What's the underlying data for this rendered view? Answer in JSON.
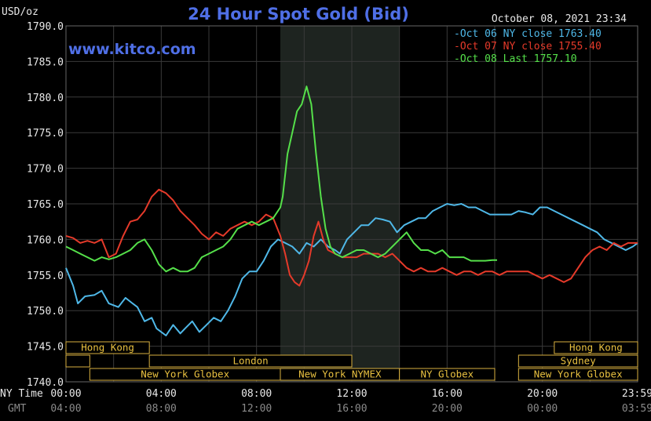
{
  "chart_data": {
    "type": "line",
    "title": "24 Hour Spot Gold (Bid)",
    "ylabel": "USD/oz",
    "website": "www.kitco.com",
    "timestamp": "October 08, 2021 23:34",
    "ylim": [
      1740,
      1790
    ],
    "y_ticks": [
      "1790.0",
      "1785.0",
      "1780.0",
      "1775.0",
      "1770.0",
      "1765.0",
      "1760.0",
      "1755.0",
      "1750.0",
      "1745.0",
      "1740.0"
    ],
    "y_values": [
      1790,
      1785,
      1780,
      1775,
      1770,
      1765,
      1760,
      1755,
      1750,
      1745,
      1740
    ],
    "x_row_labels": {
      "ny": "NY Time",
      "gmt": "GMT"
    },
    "x_ticks_ny": [
      "00:00",
      "04:00",
      "08:00",
      "12:00",
      "16:00",
      "20:00",
      "23:59"
    ],
    "x_ticks_gmt": [
      "04:00",
      "08:00",
      "12:00",
      "16:00",
      "20:00",
      "00:00",
      "03:59"
    ],
    "x_tick_hours": [
      0,
      4,
      8,
      12,
      16,
      20,
      23.983
    ],
    "xlim_hours": [
      0,
      24
    ],
    "highlight_hours": [
      9.0,
      14.0
    ],
    "legend_position": "top-right",
    "grid": true,
    "sessions": [
      {
        "label": "Hong Kong",
        "row": 0,
        "start": 0,
        "end": 3.5
      },
      {
        "label": "",
        "row": 1,
        "start": 0,
        "end": 1.0
      },
      {
        "label": "London",
        "row": 1,
        "start": 3.5,
        "end": 12.0
      },
      {
        "label": "New York Globex",
        "row": 2,
        "start": 1.0,
        "end": 9.0
      },
      {
        "label": "New York NYMEX",
        "row": 2,
        "start": 9.0,
        "end": 14.0
      },
      {
        "label": "NY Globex",
        "row": 2,
        "start": 14.0,
        "end": 18.0
      },
      {
        "label": "Hong Kong",
        "row": 0,
        "start": 20.5,
        "end": 24
      },
      {
        "label": "Sydney",
        "row": 1,
        "start": 19.0,
        "end": 24
      },
      {
        "label": "New York Globex",
        "row": 2,
        "start": 19.0,
        "end": 24
      }
    ],
    "series": [
      {
        "name": "Oct 06 NY close 1763.40",
        "color": "#4fb8e8",
        "x": [
          0,
          0.3,
          0.5,
          0.8,
          1.2,
          1.5,
          1.8,
          2.2,
          2.5,
          2.8,
          3.0,
          3.3,
          3.6,
          3.8,
          4.0,
          4.2,
          4.5,
          4.8,
          5.0,
          5.3,
          5.6,
          5.9,
          6.2,
          6.5,
          6.8,
          7.1,
          7.4,
          7.7,
          8.0,
          8.3,
          8.6,
          8.9,
          9.2,
          9.5,
          9.8,
          10.1,
          10.4,
          10.7,
          11.0,
          11.3,
          11.5,
          11.8,
          12.1,
          12.4,
          12.7,
          13.0,
          13.3,
          13.6,
          13.9,
          14.2,
          14.5,
          14.8,
          15.1,
          15.4,
          15.7,
          16.0,
          16.3,
          16.6,
          16.9,
          17.2,
          17.5,
          17.8,
          18.1,
          18.4,
          18.7,
          19.0,
          19.3,
          19.6,
          19.9,
          20.2,
          20.5,
          20.8,
          21.1,
          21.4,
          21.7,
          22.0,
          22.3,
          22.6,
          22.9,
          23.2,
          23.5,
          23.8,
          24.0
        ],
        "values": [
          1756.0,
          1753.5,
          1751.0,
          1752.0,
          1752.2,
          1752.8,
          1751.0,
          1750.5,
          1751.8,
          1751.0,
          1750.5,
          1748.5,
          1749.0,
          1747.5,
          1747.0,
          1746.5,
          1748.0,
          1746.8,
          1747.5,
          1748.5,
          1747.0,
          1748.0,
          1749.0,
          1748.5,
          1750.0,
          1752.0,
          1754.5,
          1755.5,
          1755.5,
          1757.0,
          1759.0,
          1760.0,
          1759.5,
          1759.0,
          1758.0,
          1759.5,
          1759.0,
          1760.0,
          1759.0,
          1758.5,
          1758.0,
          1760.0,
          1761.0,
          1762.0,
          1762.0,
          1763.0,
          1762.8,
          1762.5,
          1761.0,
          1762.0,
          1762.5,
          1763.0,
          1763.0,
          1764.0,
          1764.5,
          1765.0,
          1764.8,
          1765.0,
          1764.5,
          1764.5,
          1764.0,
          1763.5,
          1763.5,
          1763.5,
          1763.5,
          1764.0,
          1763.8,
          1763.5,
          1764.5,
          1764.5,
          1764.0,
          1763.5,
          1763.0,
          1762.5,
          1762.0,
          1761.5,
          1761.0,
          1760.0,
          1759.5,
          1759.0,
          1758.5,
          1759.0,
          1759.5
        ]
      },
      {
        "name": "Oct 07 NY close 1755.40",
        "color": "#e53a2a",
        "x": [
          0,
          0.3,
          0.6,
          0.9,
          1.2,
          1.5,
          1.8,
          2.1,
          2.4,
          2.7,
          3.0,
          3.3,
          3.6,
          3.9,
          4.2,
          4.5,
          4.8,
          5.1,
          5.4,
          5.7,
          6.0,
          6.3,
          6.6,
          6.9,
          7.2,
          7.5,
          7.8,
          8.1,
          8.4,
          8.7,
          9.0,
          9.2,
          9.4,
          9.6,
          9.8,
          10.0,
          10.2,
          10.4,
          10.6,
          10.8,
          11.0,
          11.3,
          11.6,
          11.9,
          12.2,
          12.5,
          12.8,
          13.1,
          13.4,
          13.7,
          14.0,
          14.3,
          14.6,
          14.9,
          15.2,
          15.5,
          15.8,
          16.1,
          16.4,
          16.7,
          17.0,
          17.3,
          17.6,
          17.9,
          18.2,
          18.5,
          18.8,
          19.1,
          19.4,
          19.7,
          20.0,
          20.3,
          20.6,
          20.9,
          21.2,
          21.5,
          21.8,
          22.1,
          22.4,
          22.7,
          23.0,
          23.3,
          23.6,
          24.0
        ],
        "values": [
          1760.5,
          1760.2,
          1759.5,
          1759.8,
          1759.5,
          1760.0,
          1757.5,
          1758.0,
          1760.5,
          1762.5,
          1762.8,
          1764.0,
          1766.0,
          1767.0,
          1766.5,
          1765.5,
          1764.0,
          1763.0,
          1762.0,
          1760.8,
          1760.0,
          1761.0,
          1760.5,
          1761.5,
          1762.0,
          1762.5,
          1762.0,
          1762.5,
          1763.5,
          1763.0,
          1760.5,
          1758.0,
          1755.0,
          1754.0,
          1753.5,
          1755.0,
          1757.0,
          1760.5,
          1762.5,
          1760.0,
          1758.5,
          1758.0,
          1757.5,
          1757.5,
          1757.5,
          1758.0,
          1758.0,
          1758.0,
          1757.5,
          1758.0,
          1757.0,
          1756.0,
          1755.5,
          1756.0,
          1755.5,
          1755.5,
          1756.0,
          1755.5,
          1755.0,
          1755.5,
          1755.5,
          1755.0,
          1755.5,
          1755.5,
          1755.0,
          1755.5,
          1755.5,
          1755.5,
          1755.5,
          1755.0,
          1754.5,
          1755.0,
          1754.5,
          1754.0,
          1754.5,
          1756.0,
          1757.5,
          1758.5,
          1759.0,
          1758.5,
          1759.5,
          1759.0,
          1759.5,
          1759.5
        ]
      },
      {
        "name": "Oct 08 Last 1757.10",
        "color": "#55e04a",
        "x": [
          0,
          0.3,
          0.6,
          0.9,
          1.2,
          1.5,
          1.8,
          2.1,
          2.4,
          2.7,
          3.0,
          3.3,
          3.6,
          3.9,
          4.2,
          4.5,
          4.8,
          5.1,
          5.4,
          5.7,
          6.0,
          6.3,
          6.6,
          6.9,
          7.2,
          7.5,
          7.8,
          8.1,
          8.4,
          8.7,
          9.0,
          9.1,
          9.3,
          9.5,
          9.7,
          9.9,
          10.1,
          10.3,
          10.5,
          10.7,
          10.9,
          11.1,
          11.3,
          11.6,
          11.9,
          12.2,
          12.5,
          12.8,
          13.1,
          13.4,
          13.7,
          14.0,
          14.3,
          14.6,
          14.9,
          15.2,
          15.5,
          15.8,
          16.1,
          16.4,
          16.7,
          17.0,
          17.3,
          17.6,
          17.9,
          18.1
        ],
        "values": [
          1759.0,
          1758.5,
          1758.0,
          1757.5,
          1757.0,
          1757.5,
          1757.2,
          1757.5,
          1758.0,
          1758.5,
          1759.5,
          1760.0,
          1758.5,
          1756.5,
          1755.5,
          1756.0,
          1755.5,
          1755.5,
          1756.0,
          1757.5,
          1758.0,
          1758.5,
          1759.0,
          1760.0,
          1761.5,
          1762.0,
          1762.5,
          1762.0,
          1762.5,
          1763.0,
          1764.5,
          1766.0,
          1772.0,
          1775.0,
          1778.0,
          1779.0,
          1781.5,
          1779.0,
          1772.0,
          1766.0,
          1761.5,
          1759.0,
          1758.0,
          1757.5,
          1758.0,
          1758.5,
          1758.5,
          1758.0,
          1757.5,
          1758.0,
          1759.0,
          1760.0,
          1761.0,
          1759.5,
          1758.5,
          1758.5,
          1758.0,
          1758.5,
          1757.5,
          1757.5,
          1757.5,
          1757.0,
          1757.0,
          1757.0,
          1757.1,
          1757.1
        ]
      }
    ]
  }
}
